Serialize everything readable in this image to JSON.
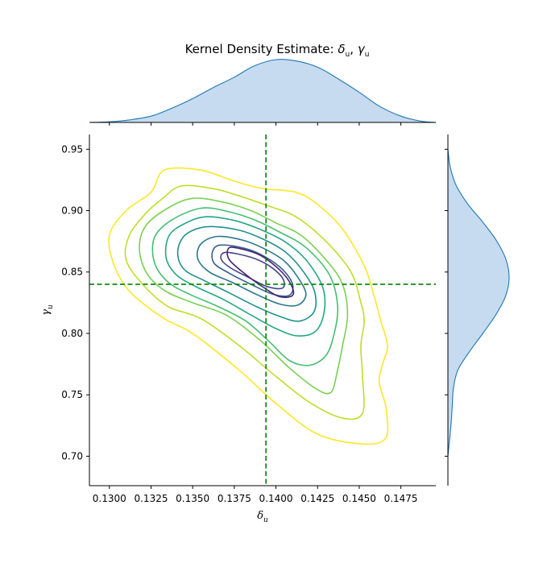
{
  "chart_data": {
    "type": "kde-joint",
    "title": "Kernel Density Estimate: δu, γu",
    "title_parts": {
      "prefix": "Kernel Density Estimate: ",
      "sep": ", ",
      "sym_x": "δ",
      "sym_y": "γ",
      "sub": "u"
    },
    "xlabel": {
      "sym": "δ",
      "sub": "u"
    },
    "ylabel": {
      "sym": "γ",
      "sub": "u"
    },
    "xlim": [
      0.1288,
      0.1496
    ],
    "ylim": [
      0.676,
      0.962
    ],
    "xticks": [
      "0.1300",
      "0.1325",
      "0.1350",
      "0.1375",
      "0.1400",
      "0.1425",
      "0.1450",
      "0.1475"
    ],
    "yticks": [
      "0.70",
      "0.75",
      "0.80",
      "0.85",
      "0.90",
      "0.95"
    ],
    "reference_lines": {
      "x": 0.1394,
      "y": 0.84,
      "color": "#008000",
      "style": "dashed"
    },
    "contour_colors": [
      "#fde725",
      "#bddf26",
      "#7ad151",
      "#44bf70",
      "#22a884",
      "#21918c",
      "#2a788e",
      "#355f8d",
      "#414487",
      "#482475"
    ],
    "contours": [
      [
        [
          0.1333,
          0.933
        ],
        [
          0.1355,
          0.933
        ],
        [
          0.1375,
          0.924
        ],
        [
          0.1392,
          0.918
        ],
        [
          0.1412,
          0.915
        ],
        [
          0.1425,
          0.905
        ],
        [
          0.144,
          0.885
        ],
        [
          0.1453,
          0.855
        ],
        [
          0.1459,
          0.83
        ],
        [
          0.1463,
          0.81
        ],
        [
          0.1467,
          0.79
        ],
        [
          0.1464,
          0.775
        ],
        [
          0.1462,
          0.76
        ],
        [
          0.1466,
          0.74
        ],
        [
          0.1466,
          0.715
        ],
        [
          0.1452,
          0.71
        ],
        [
          0.1425,
          0.718
        ],
        [
          0.14,
          0.743
        ],
        [
          0.1378,
          0.77
        ],
        [
          0.135,
          0.8
        ],
        [
          0.1333,
          0.812
        ],
        [
          0.1313,
          0.833
        ],
        [
          0.1303,
          0.855
        ],
        [
          0.13,
          0.88
        ],
        [
          0.131,
          0.9
        ],
        [
          0.1325,
          0.915
        ]
      ],
      [
        [
          0.1343,
          0.92
        ],
        [
          0.1362,
          0.918
        ],
        [
          0.1378,
          0.912
        ],
        [
          0.1395,
          0.904
        ],
        [
          0.1412,
          0.895
        ],
        [
          0.143,
          0.875
        ],
        [
          0.1445,
          0.85
        ],
        [
          0.1451,
          0.825
        ],
        [
          0.1453,
          0.81
        ],
        [
          0.1451,
          0.79
        ],
        [
          0.1452,
          0.765
        ],
        [
          0.1452,
          0.735
        ],
        [
          0.144,
          0.731
        ],
        [
          0.142,
          0.744
        ],
        [
          0.14,
          0.765
        ],
        [
          0.1378,
          0.79
        ],
        [
          0.1355,
          0.812
        ],
        [
          0.1335,
          0.822
        ],
        [
          0.132,
          0.84
        ],
        [
          0.131,
          0.86
        ],
        [
          0.1312,
          0.88
        ],
        [
          0.1322,
          0.898
        ],
        [
          0.1332,
          0.91
        ]
      ],
      [
        [
          0.135,
          0.91
        ],
        [
          0.1368,
          0.907
        ],
        [
          0.1385,
          0.9
        ],
        [
          0.14,
          0.89
        ],
        [
          0.1415,
          0.88
        ],
        [
          0.143,
          0.86
        ],
        [
          0.144,
          0.84
        ],
        [
          0.1443,
          0.815
        ],
        [
          0.144,
          0.79
        ],
        [
          0.1437,
          0.77
        ],
        [
          0.1433,
          0.752
        ],
        [
          0.1424,
          0.755
        ],
        [
          0.1408,
          0.772
        ],
        [
          0.139,
          0.795
        ],
        [
          0.137,
          0.815
        ],
        [
          0.135,
          0.825
        ],
        [
          0.1333,
          0.835
        ],
        [
          0.1322,
          0.85
        ],
        [
          0.1318,
          0.87
        ],
        [
          0.1322,
          0.888
        ],
        [
          0.1335,
          0.902
        ]
      ],
      [
        [
          0.1355,
          0.902
        ],
        [
          0.1372,
          0.899
        ],
        [
          0.1388,
          0.892
        ],
        [
          0.1403,
          0.882
        ],
        [
          0.1418,
          0.87
        ],
        [
          0.1432,
          0.848
        ],
        [
          0.1437,
          0.823
        ],
        [
          0.1435,
          0.8
        ],
        [
          0.143,
          0.782
        ],
        [
          0.142,
          0.774
        ],
        [
          0.1408,
          0.778
        ],
        [
          0.1397,
          0.792
        ],
        [
          0.1382,
          0.81
        ],
        [
          0.1365,
          0.822
        ],
        [
          0.1348,
          0.832
        ],
        [
          0.1335,
          0.842
        ],
        [
          0.1327,
          0.858
        ],
        [
          0.1327,
          0.878
        ],
        [
          0.1337,
          0.892
        ]
      ],
      [
        [
          0.1358,
          0.895
        ],
        [
          0.1375,
          0.892
        ],
        [
          0.139,
          0.885
        ],
        [
          0.1405,
          0.875
        ],
        [
          0.1418,
          0.86
        ],
        [
          0.1428,
          0.838
        ],
        [
          0.1429,
          0.818
        ],
        [
          0.1424,
          0.802
        ],
        [
          0.1413,
          0.798
        ],
        [
          0.14,
          0.804
        ],
        [
          0.1385,
          0.815
        ],
        [
          0.1368,
          0.828
        ],
        [
          0.1352,
          0.838
        ],
        [
          0.134,
          0.848
        ],
        [
          0.1334,
          0.862
        ],
        [
          0.1336,
          0.88
        ],
        [
          0.1346,
          0.89
        ]
      ],
      [
        [
          0.1362,
          0.887
        ],
        [
          0.1378,
          0.884
        ],
        [
          0.1392,
          0.877
        ],
        [
          0.1405,
          0.867
        ],
        [
          0.1415,
          0.853
        ],
        [
          0.1423,
          0.835
        ],
        [
          0.1423,
          0.818
        ],
        [
          0.1414,
          0.81
        ],
        [
          0.1402,
          0.814
        ],
        [
          0.1388,
          0.822
        ],
        [
          0.1372,
          0.833
        ],
        [
          0.1357,
          0.843
        ],
        [
          0.1345,
          0.852
        ],
        [
          0.1341,
          0.865
        ],
        [
          0.1344,
          0.878
        ],
        [
          0.1352,
          0.885
        ]
      ],
      [
        [
          0.1365,
          0.879
        ],
        [
          0.138,
          0.876
        ],
        [
          0.1393,
          0.869
        ],
        [
          0.1405,
          0.859
        ],
        [
          0.1413,
          0.846
        ],
        [
          0.1418,
          0.832
        ],
        [
          0.1413,
          0.823
        ],
        [
          0.1402,
          0.824
        ],
        [
          0.1388,
          0.832
        ],
        [
          0.1373,
          0.842
        ],
        [
          0.136,
          0.85
        ],
        [
          0.1353,
          0.861
        ],
        [
          0.1355,
          0.873
        ]
      ],
      [
        [
          0.1367,
          0.872
        ],
        [
          0.1382,
          0.869
        ],
        [
          0.1394,
          0.862
        ],
        [
          0.1404,
          0.852
        ],
        [
          0.141,
          0.84
        ],
        [
          0.1408,
          0.831
        ],
        [
          0.1398,
          0.832
        ],
        [
          0.1385,
          0.84
        ],
        [
          0.1372,
          0.849
        ],
        [
          0.1363,
          0.857
        ],
        [
          0.1362,
          0.867
        ]
      ],
      [
        [
          0.137,
          0.866
        ],
        [
          0.1385,
          0.862
        ],
        [
          0.1396,
          0.855
        ],
        [
          0.1404,
          0.845
        ],
        [
          0.1404,
          0.837
        ],
        [
          0.1395,
          0.838
        ],
        [
          0.1383,
          0.846
        ],
        [
          0.1372,
          0.854
        ],
        [
          0.1367,
          0.861
        ]
      ],
      [
        [
          0.1375,
          0.87
        ],
        [
          0.139,
          0.864
        ],
        [
          0.1402,
          0.852
        ],
        [
          0.1409,
          0.84
        ],
        [
          0.141,
          0.831
        ],
        [
          0.1402,
          0.83
        ],
        [
          0.1392,
          0.838
        ],
        [
          0.138,
          0.85
        ],
        [
          0.1372,
          0.86
        ],
        [
          0.1371,
          0.868
        ]
      ]
    ],
    "marginal_x": {
      "x": [
        0.1288,
        0.13,
        0.1312,
        0.1325,
        0.1337,
        0.135,
        0.1362,
        0.1375,
        0.1387,
        0.14,
        0.1412,
        0.1425,
        0.1437,
        0.145,
        0.1462,
        0.1475,
        0.1487,
        0.1496
      ],
      "density": [
        0.0,
        0.01,
        0.04,
        0.1,
        0.22,
        0.38,
        0.55,
        0.72,
        0.9,
        1.0,
        0.98,
        0.88,
        0.7,
        0.48,
        0.26,
        0.1,
        0.02,
        0.0
      ]
    },
    "marginal_y": {
      "y": [
        0.7,
        0.71,
        0.725,
        0.74,
        0.755,
        0.77,
        0.785,
        0.8,
        0.815,
        0.83,
        0.845,
        0.86,
        0.875,
        0.89,
        0.905,
        0.92,
        0.935,
        0.95
      ],
      "density": [
        0.0,
        0.02,
        0.05,
        0.07,
        0.09,
        0.16,
        0.35,
        0.57,
        0.78,
        0.94,
        1.0,
        0.95,
        0.8,
        0.58,
        0.33,
        0.14,
        0.04,
        0.0
      ]
    },
    "marginal_fill": "#c6dbef",
    "marginal_line": "#1f77b4",
    "grid": false,
    "legend": "none"
  }
}
